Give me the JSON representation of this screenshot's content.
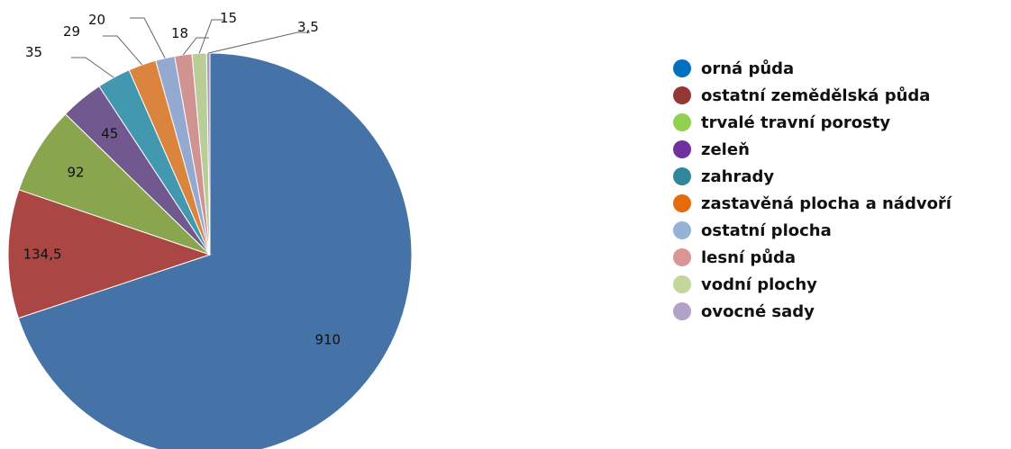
{
  "chart_data": {
    "type": "pie",
    "title": "",
    "categories": [
      "orná půda",
      "ostatní zemědělská půda",
      "trvalé travní porosty",
      "zeleň",
      "zahrady",
      "zastavěná plocha a nádvoří",
      "ostatní plocha",
      "lesní půda",
      "vodní plochy",
      "ovocné sady"
    ],
    "values": [
      910,
      134.5,
      92,
      45,
      35,
      29,
      20,
      18,
      15,
      3.5
    ],
    "value_labels": [
      "910",
      "134,5",
      "92",
      "45",
      "35",
      "29",
      "20",
      "18",
      "15",
      "3,5"
    ],
    "colors": [
      "#4572A7",
      "#AA4643",
      "#89A54E",
      "#71588F",
      "#4198AF",
      "#DB843D",
      "#93A9CF",
      "#D19392",
      "#B9CD96",
      "#A99BBD"
    ],
    "legend_marker_colors": [
      "#0070C0",
      "#953735",
      "#92D050",
      "#7030A0",
      "#31859C",
      "#E46C0A",
      "#95B3D7",
      "#D99694",
      "#C3D69B",
      "#B3A2C7"
    ],
    "legend_position": "right",
    "start": "top, clockwise"
  }
}
